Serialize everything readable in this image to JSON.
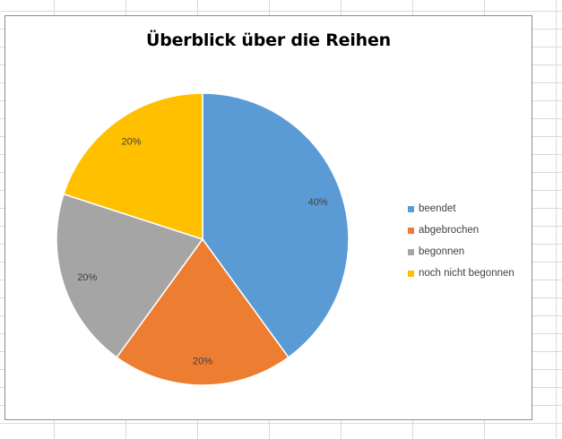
{
  "chart_data": {
    "type": "pie",
    "title": "Überblick über die Reihen",
    "categories": [
      "beendet",
      "abgebrochen",
      "begonnen",
      "noch nicht begonnen"
    ],
    "values": [
      40,
      20,
      20,
      20
    ],
    "value_labels": [
      "40%",
      "20%",
      "20%",
      "20%"
    ],
    "colors": [
      "#5b9bd5",
      "#ed7d31",
      "#a5a5a5",
      "#ffc000"
    ],
    "start_angle_deg": 0,
    "direction": "clockwise",
    "legend_placement": "right",
    "grid": false
  }
}
